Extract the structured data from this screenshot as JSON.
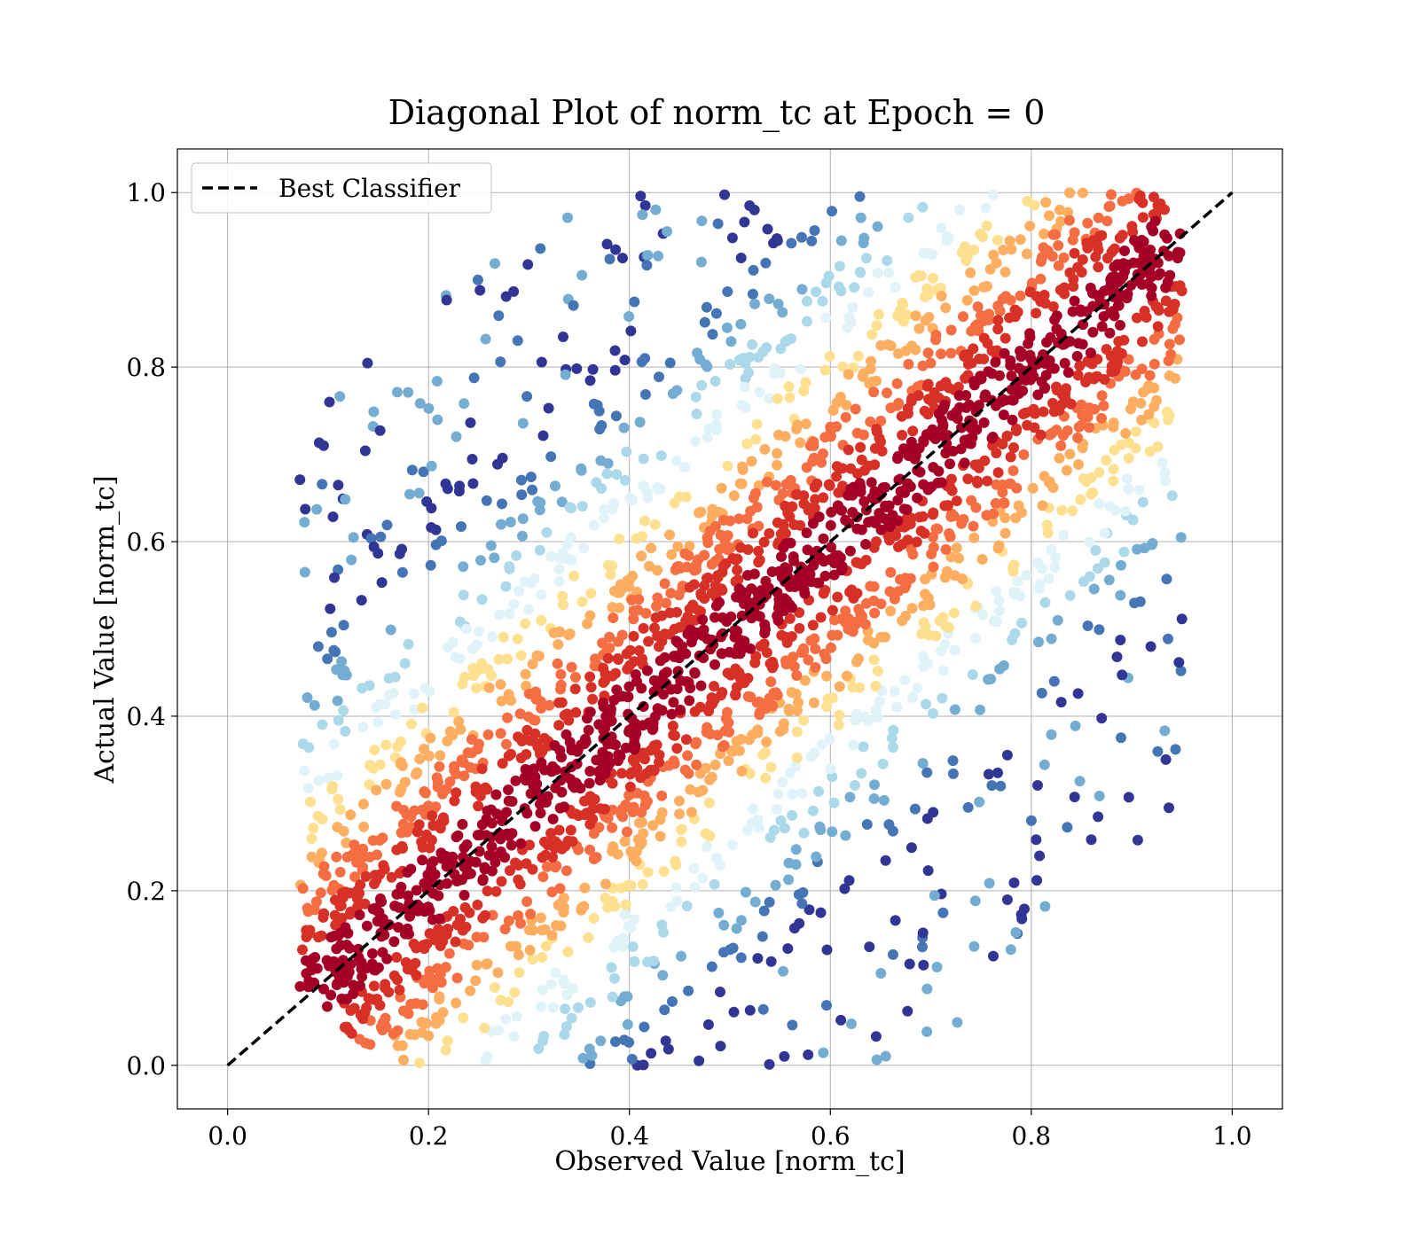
{
  "chart_data": {
    "type": "scatter",
    "title": "Diagonal Plot of norm_tc at Epoch = 0",
    "xlabel": "Observed Value [norm_tc]",
    "ylabel": "Actual Value [norm_tc]",
    "xlim": [
      -0.05,
      1.05
    ],
    "ylim": [
      -0.05,
      1.05
    ],
    "xticks": [
      0.0,
      0.2,
      0.4,
      0.6,
      0.8,
      1.0
    ],
    "yticks": [
      0.0,
      0.2,
      0.4,
      0.6,
      0.8,
      1.0
    ],
    "xtick_labels": [
      "0.0",
      "0.2",
      "0.4",
      "0.6",
      "0.8",
      "1.0"
    ],
    "ytick_labels": [
      "0.0",
      "0.2",
      "0.4",
      "0.6",
      "0.8",
      "1.0"
    ],
    "grid": true,
    "legend": {
      "placement": "top-left",
      "entries": [
        {
          "label": "Best Classifier",
          "style": "dashed",
          "color": "#000000"
        }
      ]
    },
    "reference_line": {
      "name": "Best Classifier",
      "x": [
        0.0,
        1.0
      ],
      "y": [
        0.0,
        1.0
      ],
      "style": "dashed",
      "color": "#000000"
    },
    "density_colormap": [
      "#313695",
      "#4575b4",
      "#74add1",
      "#abd9e9",
      "#e0f3f8",
      "#fee090",
      "#fdae61",
      "#f46d43",
      "#d73027",
      "#a50026"
    ],
    "point_cloud": {
      "description_of_band": "diagonal",
      "x_range": [
        0.07,
        0.95
      ],
      "y_range": [
        0.0,
        1.0
      ]
    }
  }
}
